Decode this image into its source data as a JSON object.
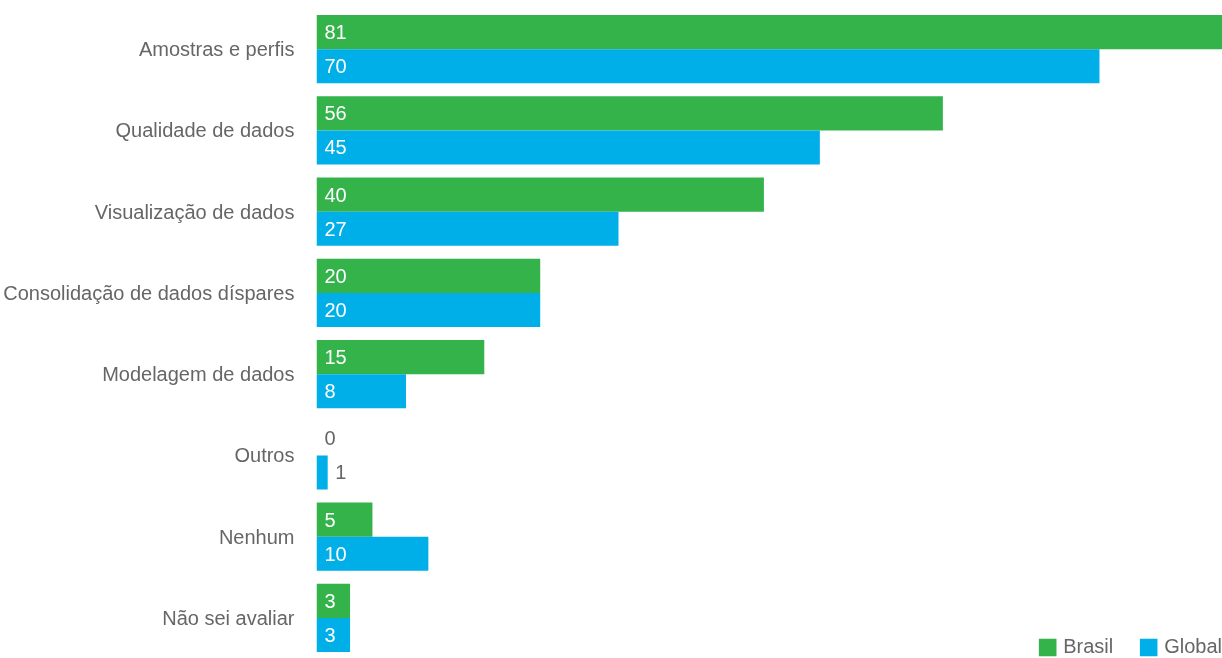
{
  "chart_data": {
    "type": "bar",
    "orientation": "horizontal",
    "categories": [
      "Amostras e perfis",
      "Qualidade de dados",
      "Visualização de dados",
      "Consolidação de dados díspares",
      "Modelagem de dados",
      "Outros",
      "Nenhum",
      "Não sei avaliar"
    ],
    "series": [
      {
        "name": "Brasil",
        "color": "#33b34a",
        "values": [
          81,
          56,
          40,
          20,
          15,
          0,
          5,
          3
        ]
      },
      {
        "name": "Global",
        "color": "#00aee8",
        "values": [
          70,
          45,
          27,
          20,
          8,
          1,
          10,
          3
        ]
      }
    ],
    "xlim": [
      0,
      81
    ],
    "tick_labels": "y",
    "data_labels": true,
    "grid": false,
    "legend": "bottom right"
  }
}
